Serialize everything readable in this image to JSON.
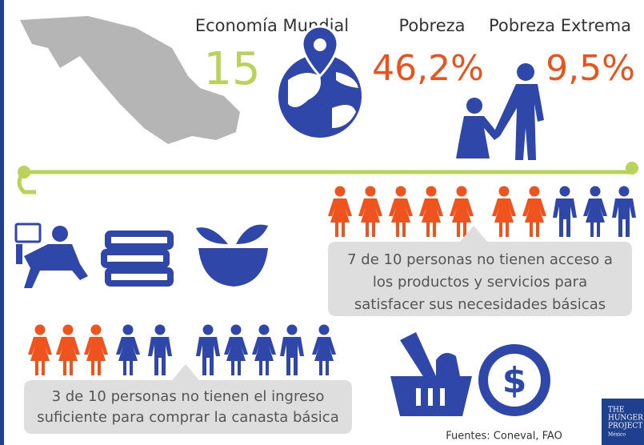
{
  "header": {
    "economy_label": "Economía Mundial",
    "economy_rank": "15",
    "poverty_label": "Pobreza",
    "poverty_value": "46,2%",
    "extreme_label": "Pobreza Extrema",
    "extreme_value": "9,5%"
  },
  "services_note": {
    "lines": [
      "7 de 10 personas no tienen acceso a",
      "los productos y servicios para",
      "satisfacer sus necesidades básicas"
    ]
  },
  "income_note": {
    "lines": [
      "3 de 10 personas no tienen el ingreso",
      "suficiente para comprar la canasta básica"
    ]
  },
  "sources": "Fuentes: Coneval, FAO",
  "logo": {
    "lines": [
      "THE",
      "HUNGER",
      "PROJECT",
      "México"
    ]
  }
}
